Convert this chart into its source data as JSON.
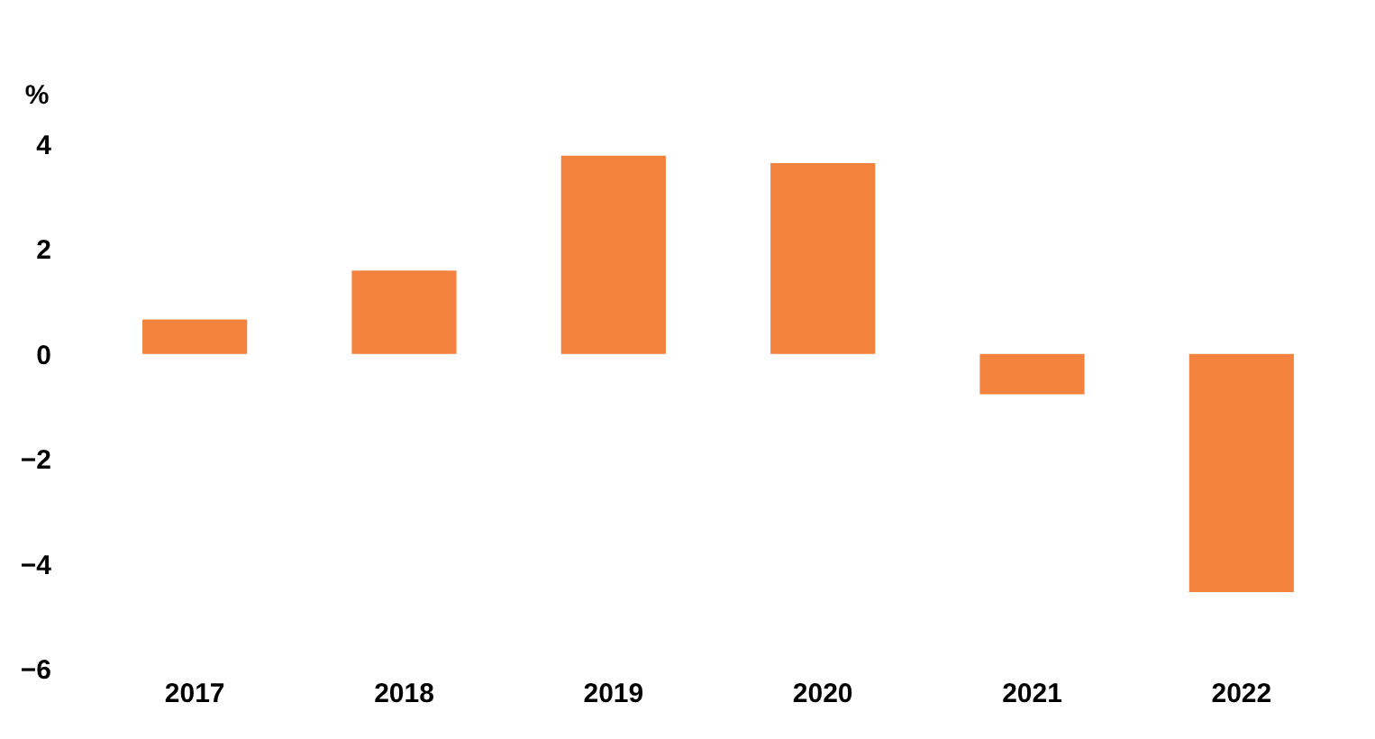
{
  "chart_data": {
    "type": "bar",
    "ylabel": "%",
    "categories": [
      "2017",
      "2018",
      "2019",
      "2020",
      "2021",
      "2022"
    ],
    "values": [
      0.66,
      1.59,
      3.78,
      3.64,
      -0.77,
      -4.54
    ],
    "color": "#f4823f",
    "ylim": [
      -6,
      4
    ],
    "yticks": [
      -6,
      -4,
      -2,
      0,
      2,
      4
    ],
    "grid": false
  }
}
